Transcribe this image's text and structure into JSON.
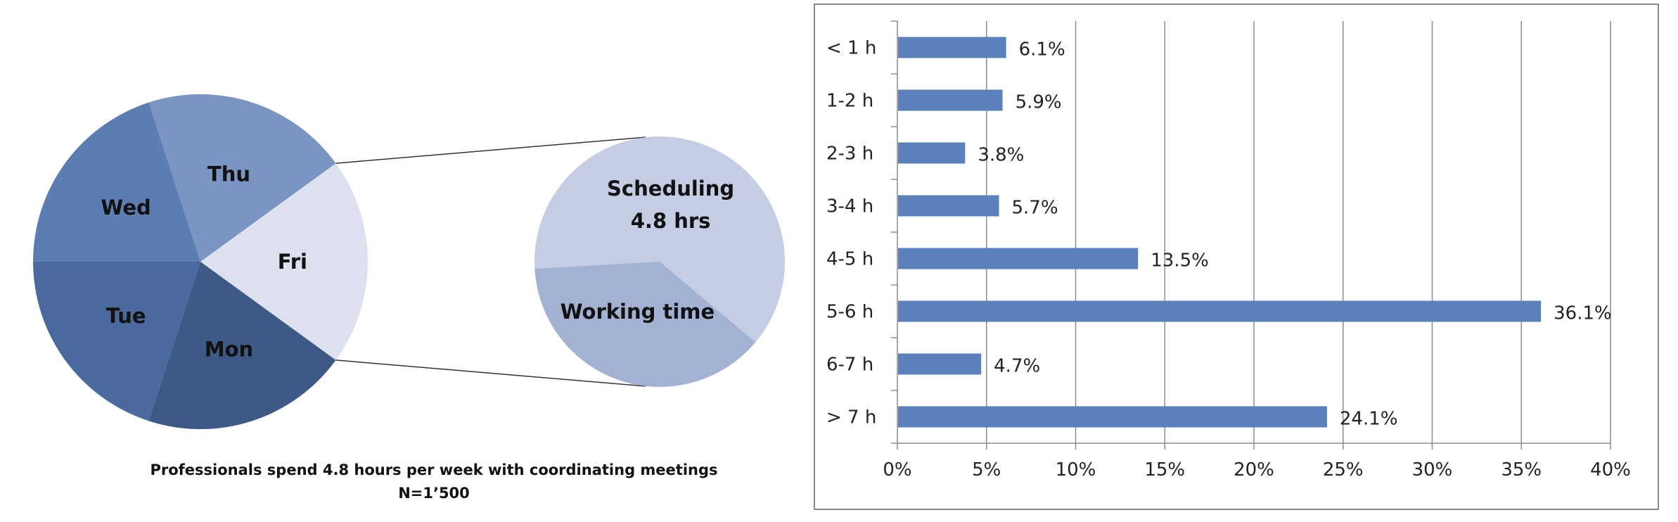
{
  "chart_data": [
    {
      "type": "pie",
      "subtype": "pie-of-pie",
      "title": "Professionals spend 4.8 hours per week with coordinating meetings",
      "subtitle": "N=1’500",
      "slices": [
        {
          "label": "Fri",
          "value": 20,
          "color": "#dde1ef"
        },
        {
          "label": "Thu",
          "value": 20,
          "color": "#7a95c2"
        },
        {
          "label": "Wed",
          "value": 20,
          "color": "#5b7db2"
        },
        {
          "label": "Tue",
          "value": 20,
          "color": "#4a6a9e"
        },
        {
          "label": "Mon",
          "value": 20,
          "color": "#3d5a86"
        }
      ],
      "exploded_slice": "Fri",
      "breakdown": [
        {
          "label_lines": [
            "Scheduling",
            "4.8 hrs"
          ],
          "value": 62,
          "color": "#c4cde3"
        },
        {
          "label_lines": [
            "Working time"
          ],
          "value": 38,
          "color": "#a3b2d3"
        }
      ]
    },
    {
      "type": "bar",
      "orientation": "horizontal",
      "categories": [
        "< 1 h",
        "1-2 h",
        "2-3 h",
        "3-4 h",
        "4-5 h",
        "5-6 h",
        "6-7 h",
        "> 7 h"
      ],
      "values": [
        6.1,
        5.9,
        3.8,
        5.7,
        13.5,
        36.1,
        4.7,
        24.1
      ],
      "value_labels": [
        "6.1%",
        "5.9%",
        "3.8%",
        "5.7%",
        "13.5%",
        "36.1%",
        "4.7%",
        "24.1%"
      ],
      "xlim": [
        0,
        40
      ],
      "xticks": [
        0,
        5,
        10,
        15,
        20,
        25,
        30,
        35,
        40
      ],
      "xtick_labels": [
        "0%",
        "5%",
        "10%",
        "15%",
        "20%",
        "25%",
        "30%",
        "35%",
        "40%"
      ],
      "grid": "vertical",
      "bar_color": "#5a80bd",
      "legend": "none"
    }
  ]
}
